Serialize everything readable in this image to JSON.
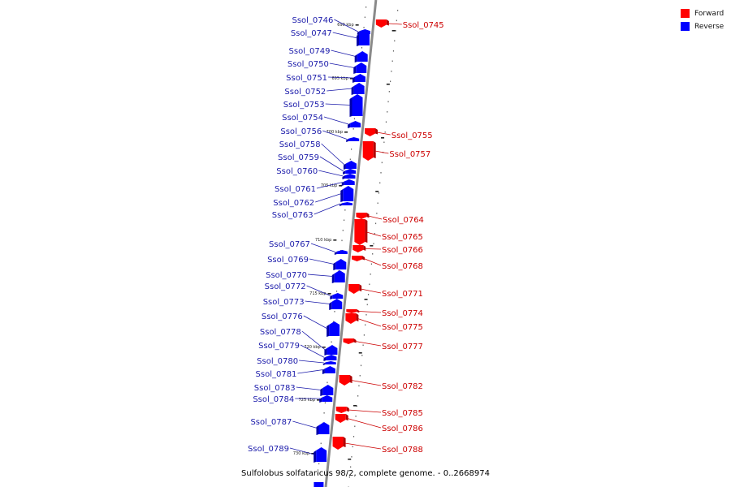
{
  "legend": {
    "forward": {
      "label": "Forward",
      "color": "#ff0000"
    },
    "reverse": {
      "label": "Reverse",
      "color": "#0000ff"
    }
  },
  "caption": "Sulfolobus solfataricus 98/2, complete genome. - 0..2668974",
  "kbp_marks": [
    "690 kbp",
    "695 kbp",
    "700 kbp",
    "705 kbp",
    "710 kbp",
    "715 kbp",
    "720 kbp",
    "725 kbp",
    "730 kbp"
  ],
  "genes": [
    {
      "name": "Ssol_0745",
      "strand": "forward"
    },
    {
      "name": "Ssol_0746",
      "strand": "reverse"
    },
    {
      "name": "Ssol_0747",
      "strand": "reverse"
    },
    {
      "name": "Ssol_0749",
      "strand": "reverse"
    },
    {
      "name": "Ssol_0750",
      "strand": "reverse"
    },
    {
      "name": "Ssol_0751",
      "strand": "reverse"
    },
    {
      "name": "Ssol_0752",
      "strand": "reverse"
    },
    {
      "name": "Ssol_0753",
      "strand": "reverse"
    },
    {
      "name": "Ssol_0754",
      "strand": "reverse"
    },
    {
      "name": "Ssol_0755",
      "strand": "forward"
    },
    {
      "name": "Ssol_0756",
      "strand": "reverse"
    },
    {
      "name": "Ssol_0757",
      "strand": "forward"
    },
    {
      "name": "Ssol_0758",
      "strand": "reverse"
    },
    {
      "name": "Ssol_0759",
      "strand": "reverse"
    },
    {
      "name": "Ssol_0760",
      "strand": "reverse"
    },
    {
      "name": "Ssol_0761",
      "strand": "reverse"
    },
    {
      "name": "Ssol_0762",
      "strand": "reverse"
    },
    {
      "name": "Ssol_0763",
      "strand": "reverse"
    },
    {
      "name": "Ssol_0764",
      "strand": "forward"
    },
    {
      "name": "Ssol_0765",
      "strand": "forward"
    },
    {
      "name": "Ssol_0766",
      "strand": "forward"
    },
    {
      "name": "Ssol_0767",
      "strand": "reverse"
    },
    {
      "name": "Ssol_0768",
      "strand": "forward"
    },
    {
      "name": "Ssol_0769",
      "strand": "reverse"
    },
    {
      "name": "Ssol_0770",
      "strand": "reverse"
    },
    {
      "name": "Ssol_0771",
      "strand": "forward"
    },
    {
      "name": "Ssol_0772",
      "strand": "reverse"
    },
    {
      "name": "Ssol_0773",
      "strand": "reverse"
    },
    {
      "name": "Ssol_0774",
      "strand": "forward"
    },
    {
      "name": "Ssol_0775",
      "strand": "forward"
    },
    {
      "name": "Ssol_0776",
      "strand": "reverse"
    },
    {
      "name": "Ssol_0777",
      "strand": "forward"
    },
    {
      "name": "Ssol_0778",
      "strand": "reverse"
    },
    {
      "name": "Ssol_0779",
      "strand": "reverse"
    },
    {
      "name": "Ssol_0780",
      "strand": "reverse"
    },
    {
      "name": "Ssol_0781",
      "strand": "reverse"
    },
    {
      "name": "Ssol_0782",
      "strand": "forward"
    },
    {
      "name": "Ssol_0783",
      "strand": "reverse"
    },
    {
      "name": "Ssol_0784",
      "strand": "reverse"
    },
    {
      "name": "Ssol_0785",
      "strand": "forward"
    },
    {
      "name": "Ssol_0786",
      "strand": "forward"
    },
    {
      "name": "Ssol_0787",
      "strand": "reverse"
    },
    {
      "name": "Ssol_0788",
      "strand": "forward"
    },
    {
      "name": "Ssol_0789",
      "strand": "reverse"
    }
  ]
}
